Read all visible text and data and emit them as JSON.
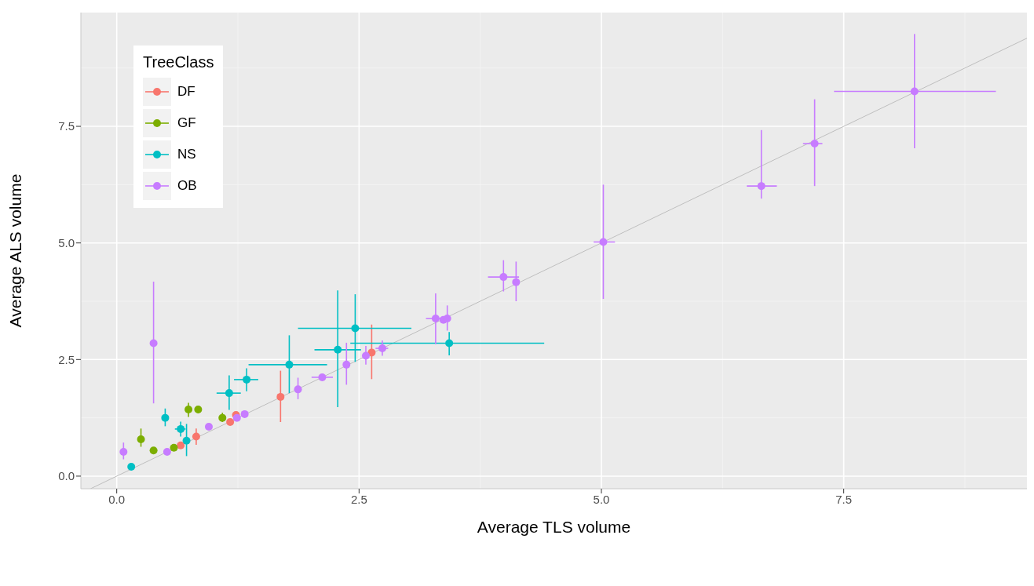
{
  "chart_data": {
    "type": "scatter",
    "xlabel": "Average TLS volume",
    "ylabel": "Average ALS volume",
    "legend_title": "TreeClass",
    "legend": "top left",
    "grid": true,
    "marker": "circle",
    "xlim": [
      -0.37,
      9.39
    ],
    "ylim": [
      -0.27,
      9.94
    ],
    "xticks": [
      {
        "value": 0,
        "label": "0.0"
      },
      {
        "value": 2.5,
        "label": "2.5"
      },
      {
        "value": 5,
        "label": "5.0"
      },
      {
        "value": 7.5,
        "label": "7.5"
      }
    ],
    "yticks": [
      {
        "value": 0,
        "label": "0.0"
      },
      {
        "value": 2.5,
        "label": "2.5"
      },
      {
        "value": 5,
        "label": "5.0"
      },
      {
        "value": 7.5,
        "label": "7.5"
      }
    ],
    "series": [
      {
        "type": "line",
        "marker": "none",
        "color": "#bebebe",
        "x": [
          -0.27,
          9.39
        ],
        "values": [
          -0.27,
          9.39
        ]
      },
      {
        "name": "DF",
        "color": "#f8766d",
        "x": [
          0.66,
          0.82,
          1.17,
          1.23,
          1.69,
          2.63
        ],
        "values": [
          0.66,
          0.85,
          1.16,
          1.31,
          1.7,
          2.65
        ],
        "errors": [
          null,
          [
            0.67,
            1.02
          ],
          null,
          null,
          [
            1.16,
            2.26
          ],
          [
            2.08,
            3.25
          ]
        ]
      },
      {
        "name": "GF",
        "color": "#7cae00",
        "x": [
          0.25,
          0.38,
          0.59,
          0.74,
          0.84,
          1.09
        ],
        "values": [
          0.79,
          0.55,
          0.61,
          1.43,
          1.43,
          1.25
        ],
        "errors": [
          [
            0.63,
            1.02
          ],
          null,
          null,
          [
            1.27,
            1.57
          ],
          [
            1.35,
            1.5
          ],
          [
            1.16,
            1.36
          ]
        ]
      },
      {
        "name": "NS",
        "color": "#00bfc4",
        "x": [
          0.15,
          0.5,
          0.66,
          0.72,
          1.16,
          1.34,
          1.78,
          2.28,
          2.46,
          3.43
        ],
        "values": [
          0.2,
          1.25,
          1.01,
          0.76,
          1.78,
          2.07,
          2.39,
          2.71,
          3.17,
          2.85
        ],
        "errors": [
          null,
          [
            1.07,
            1.45
          ],
          [
            0.85,
            1.17
          ],
          [
            0.43,
            1.12
          ],
          [
            1.42,
            2.16
          ],
          [
            1.82,
            2.31
          ],
          [
            1.78,
            3.02
          ],
          [
            1.48,
            3.98
          ],
          [
            2.45,
            3.9
          ],
          [
            2.59,
            3.09
          ]
        ],
        "xerrors": [
          null,
          null,
          [
            0.6,
            0.71
          ],
          null,
          [
            1.03,
            1.28
          ],
          [
            1.21,
            1.46
          ],
          [
            1.36,
            2.17
          ],
          [
            2.04,
            2.52
          ],
          [
            1.87,
            3.04
          ],
          [
            2.41,
            4.41
          ]
        ]
      },
      {
        "name": "OB",
        "color": "#c77cff",
        "x": [
          0.07,
          0.38,
          0.52,
          0.95,
          1.24,
          1.32,
          1.87,
          2.12,
          2.37,
          2.57,
          2.74,
          3.29,
          3.37,
          3.41,
          3.99,
          4.12,
          5.02,
          6.65,
          7.2,
          8.23
        ],
        "values": [
          0.52,
          2.85,
          0.52,
          1.06,
          1.25,
          1.33,
          1.86,
          2.12,
          2.39,
          2.58,
          2.74,
          3.38,
          3.35,
          3.38,
          4.27,
          4.16,
          5.02,
          6.22,
          7.13,
          8.25
        ],
        "errors": [
          [
            0.36,
            0.72
          ],
          [
            1.56,
            4.17
          ],
          null,
          null,
          null,
          null,
          [
            1.65,
            2.11
          ],
          null,
          [
            1.96,
            2.86
          ],
          [
            2.39,
            2.79
          ],
          [
            2.58,
            2.91
          ],
          [
            2.83,
            3.92
          ],
          null,
          [
            3.12,
            3.66
          ],
          [
            3.96,
            4.63
          ],
          [
            3.75,
            4.6
          ],
          [
            3.8,
            6.25
          ],
          [
            5.95,
            7.42
          ],
          [
            6.22,
            8.08
          ],
          [
            7.03,
            9.48
          ]
        ],
        "xerrors": [
          null,
          null,
          null,
          null,
          null,
          null,
          null,
          [
            2.01,
            2.23
          ],
          null,
          null,
          [
            2.67,
            2.8
          ],
          [
            3.19,
            3.37
          ],
          null,
          null,
          [
            3.83,
            4.15
          ],
          null,
          [
            4.92,
            5.14
          ],
          [
            6.5,
            6.81
          ],
          [
            7.08,
            7.28
          ],
          [
            7.4,
            9.07
          ]
        ]
      }
    ]
  }
}
